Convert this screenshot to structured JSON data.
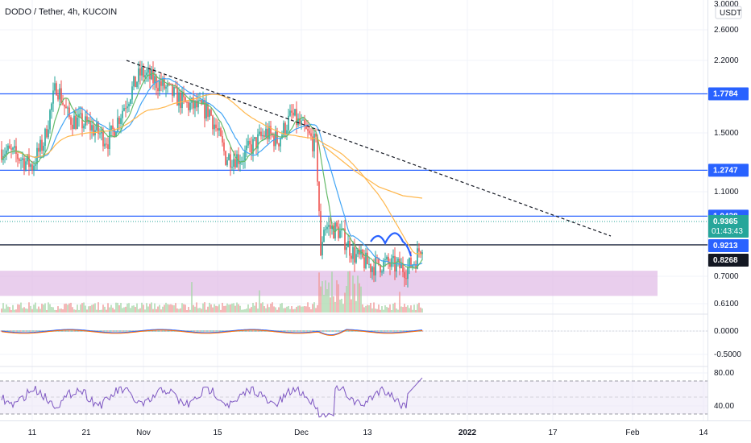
{
  "header": {
    "title": "DODO / Tether, 4h, KUCOIN"
  },
  "chart_data": {
    "type": "candlestick",
    "price_axis": {
      "currency_label": "USDT",
      "ticks": [
        "3.0000",
        "2.6000",
        "2.2000",
        "1.5000",
        "1.1000",
        "0.7000",
        "0.6100"
      ],
      "scale": "log"
    },
    "x_ticks": [
      "11",
      "21",
      "Nov",
      "15",
      "Dec",
      "13",
      "2022",
      "17",
      "Feb",
      "14"
    ],
    "horizontal_levels": [
      {
        "value": 1.7784,
        "label": "1.7784",
        "color": "#2962ff"
      },
      {
        "value": 1.2747,
        "label": "1.2747",
        "color": "#2962ff"
      },
      {
        "value": 1.0438,
        "label": "1.0438",
        "color": "#2962ff"
      },
      {
        "value": 0.9213,
        "label": "0.9213",
        "color": "#2962ff"
      }
    ],
    "current_price": {
      "value": 0.9365,
      "label": "0.9365",
      "countdown": "01:43:43",
      "color": "#26a69a"
    },
    "support_line": {
      "value": 0.8268,
      "label": "0.8268",
      "color": "#131722"
    },
    "support_zone": {
      "from": 0.74,
      "to": 0.82,
      "color": "#e1bee7"
    },
    "trendline": {
      "start": {
        "x": "Oct 15",
        "y": 2.1
      },
      "end": {
        "x": "Jan 27",
        "y": 0.85
      },
      "style": "dashed"
    },
    "moving_averages": [
      {
        "color": "#42a5f5"
      },
      {
        "color": "#ffb74d"
      },
      {
        "color": "#66bb6a"
      }
    ],
    "macd_pane": {
      "ticks": [
        "0.0000",
        "-0.5000"
      ]
    },
    "rsi_pane": {
      "ticks": [
        "80.00",
        "40.00"
      ],
      "line_color": "#7e57c2",
      "upper_band": 70,
      "lower_band": 30
    }
  }
}
